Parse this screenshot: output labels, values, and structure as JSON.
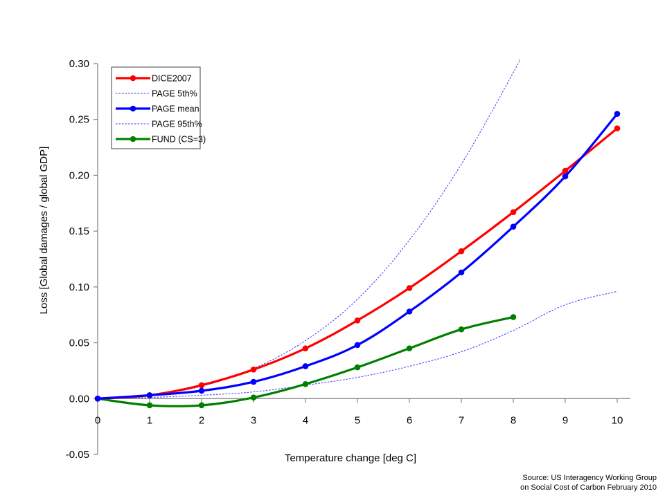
{
  "chart_data": {
    "type": "line",
    "title": "",
    "xlabel": "Temperature change [deg C]",
    "ylabel": "Loss  [Global damages / global GDP]",
    "xlim": [
      0,
      10
    ],
    "ylim": [
      -0.05,
      0.3
    ],
    "x_ticks": [
      "0",
      "1",
      "2",
      "3",
      "4",
      "5",
      "6",
      "7",
      "8",
      "9",
      "10"
    ],
    "y_ticks": [
      "0.30",
      "0.25",
      "0.20",
      "0.15",
      "0.10",
      "0.05",
      "0.00",
      "-0.05"
    ],
    "y_tick_values": [
      0.3,
      0.25,
      0.2,
      0.15,
      0.1,
      0.05,
      0.0,
      -0.05
    ],
    "grid": false,
    "legend_position": "top-left",
    "series": [
      {
        "name": "DICE2007",
        "color": "#ff0000",
        "style": "solid-markers",
        "x": [
          0,
          1,
          2,
          3,
          4,
          5,
          6,
          7,
          8,
          9,
          10
        ],
        "values": [
          0.0,
          0.003,
          0.012,
          0.026,
          0.045,
          0.07,
          0.099,
          0.132,
          0.167,
          0.204,
          0.242
        ]
      },
      {
        "name": "PAGE 5th%",
        "color": "#3333ff",
        "style": "dotted",
        "x": [
          0,
          1,
          2,
          3,
          4,
          5,
          6,
          7,
          8,
          9,
          10
        ],
        "values": [
          0.0,
          0.001,
          0.003,
          0.006,
          0.012,
          0.019,
          0.029,
          0.042,
          0.061,
          0.084,
          0.096
        ]
      },
      {
        "name": "PAGE mean",
        "color": "#0000ff",
        "style": "solid-markers",
        "x": [
          0,
          1,
          2,
          3,
          4,
          5,
          6,
          7,
          8,
          9,
          10
        ],
        "values": [
          0.0,
          0.003,
          0.007,
          0.015,
          0.029,
          0.048,
          0.078,
          0.113,
          0.154,
          0.199,
          0.255
        ]
      },
      {
        "name": "PAGE 95th%",
        "color": "#3333ff",
        "style": "dotted",
        "x": [
          0,
          1,
          2,
          3,
          4,
          5,
          6,
          7,
          8,
          8.12
        ],
        "values": [
          0.0,
          0.003,
          0.011,
          0.027,
          0.052,
          0.089,
          0.142,
          0.21,
          0.292,
          0.304
        ]
      },
      {
        "name": "FUND (CS=3)",
        "color": "#008000",
        "style": "solid-markers",
        "x": [
          0,
          1,
          2,
          3,
          4,
          5,
          6,
          7,
          8
        ],
        "values": [
          0.0,
          -0.006,
          -0.006,
          0.001,
          0.013,
          0.028,
          0.045,
          0.062,
          0.073
        ]
      }
    ]
  },
  "source_note": {
    "line1": "Source: US Interagency Working Group",
    "line2": "on Social Cost of Carbon February 2010"
  }
}
